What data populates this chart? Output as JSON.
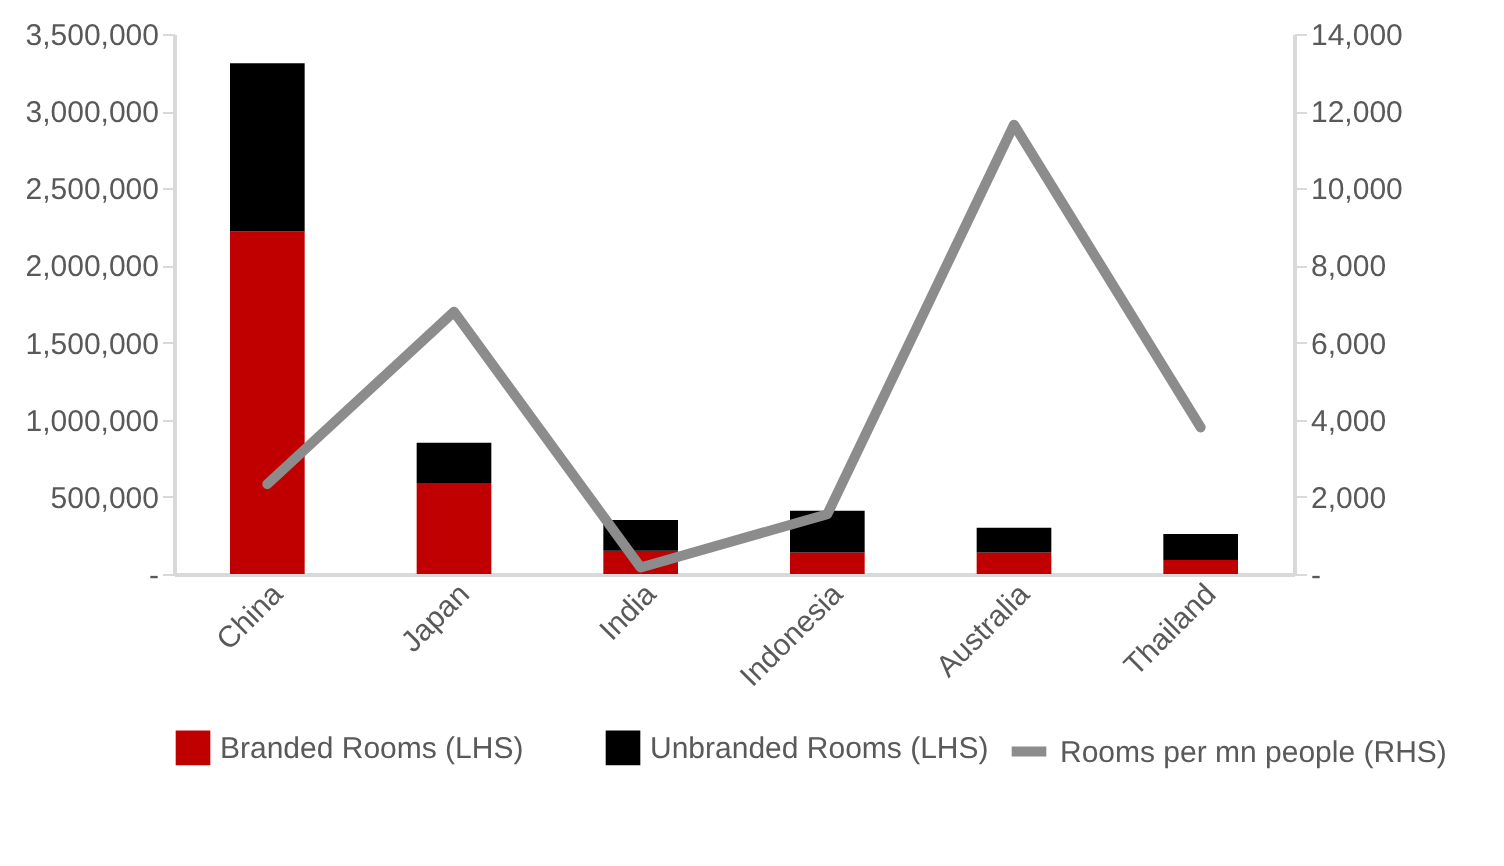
{
  "chart_data": {
    "type": "bar",
    "stacked": true,
    "categories": [
      "China",
      "Japan",
      "India",
      "Indonesia",
      "Australia",
      "Thailand"
    ],
    "series": [
      {
        "name": "Branded Rooms (LHS)",
        "color": "#c00000",
        "values": [
          2220000,
          590000,
          150000,
          140000,
          140000,
          90000
        ]
      },
      {
        "name": "Unbranded Rooms (LHS)",
        "color": "#000000",
        "values": [
          1090000,
          260000,
          200000,
          270000,
          160000,
          170000
        ]
      },
      {
        "name": "Rooms per mn people (RHS)",
        "type": "line",
        "axis": "y2",
        "color": "#8c8c8c",
        "values": [
          2330,
          6800,
          170,
          1550,
          11650,
          3800
        ]
      }
    ],
    "ylim": [
      0,
      3500000
    ],
    "yticks": [
      {
        "value": 0,
        "label": "-"
      },
      {
        "value": 500000,
        "label": "500,000"
      },
      {
        "value": 1000000,
        "label": "1,000,000"
      },
      {
        "value": 1500000,
        "label": "1,500,000"
      },
      {
        "value": 2000000,
        "label": "2,000,000"
      },
      {
        "value": 2500000,
        "label": "2,500,000"
      },
      {
        "value": 3000000,
        "label": "3,000,000"
      },
      {
        "value": 3500000,
        "label": "3,500,000"
      }
    ],
    "y2lim": [
      0,
      14000
    ],
    "y2ticks": [
      {
        "value": 0,
        "label": "-"
      },
      {
        "value": 2000,
        "label": "2,000"
      },
      {
        "value": 4000,
        "label": "4,000"
      },
      {
        "value": 6000,
        "label": "6,000"
      },
      {
        "value": 8000,
        "label": "8,000"
      },
      {
        "value": 10000,
        "label": "10,000"
      },
      {
        "value": 12000,
        "label": "12,000"
      },
      {
        "value": 14000,
        "label": "14,000"
      }
    ],
    "legend": "bottom",
    "grid": false
  }
}
